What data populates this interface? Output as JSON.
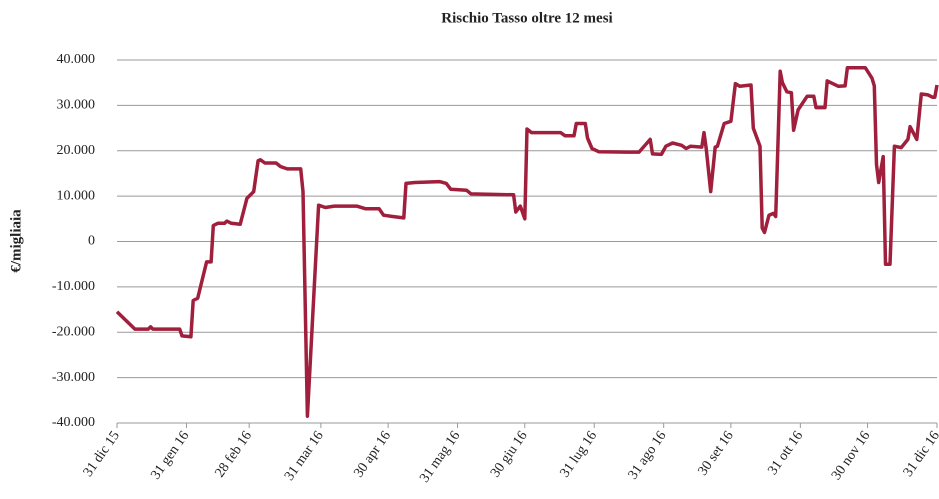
{
  "chart_data": {
    "type": "line",
    "title": "Rischio Tasso oltre 12 mesi",
    "ylabel": "€/migliaia",
    "x": [
      "2015-12-31",
      "2016-01-08",
      "2016-01-14",
      "2016-01-15",
      "2016-01-16",
      "2016-01-28",
      "2016-01-29",
      "2016-02-02",
      "2016-02-03",
      "2016-02-05",
      "2016-02-09",
      "2016-02-11",
      "2016-02-12",
      "2016-02-14",
      "2016-02-17",
      "2016-02-18",
      "2016-02-20",
      "2016-02-24",
      "2016-02-27",
      "2016-03-01",
      "2016-03-03",
      "2016-03-04",
      "2016-03-06",
      "2016-03-11",
      "2016-03-13",
      "2016-03-16",
      "2016-03-22",
      "2016-03-23",
      "2016-03-25",
      "2016-03-30",
      "2016-04-02",
      "2016-04-06",
      "2016-04-16",
      "2016-04-20",
      "2016-04-26",
      "2016-04-28",
      "2016-05-02",
      "2016-05-07",
      "2016-05-08",
      "2016-05-12",
      "2016-05-23",
      "2016-05-26",
      "2016-05-28",
      "2016-06-04",
      "2016-06-06",
      "2016-06-25",
      "2016-06-26",
      "2016-06-28",
      "2016-06-30",
      "2016-07-01",
      "2016-07-03",
      "2016-07-16",
      "2016-07-18",
      "2016-07-22",
      "2016-07-23",
      "2016-07-27",
      "2016-07-28",
      "2016-07-30",
      "2016-08-02",
      "2016-08-15",
      "2016-08-20",
      "2016-08-25",
      "2016-08-26",
      "2016-08-30",
      "2016-09-01",
      "2016-09-04",
      "2016-09-08",
      "2016-09-10",
      "2016-09-12",
      "2016-09-17",
      "2016-09-18",
      "2016-09-19",
      "2016-09-21",
      "2016-09-23",
      "2016-09-24",
      "2016-09-27",
      "2016-09-30",
      "2016-10-02",
      "2016-10-04",
      "2016-10-09",
      "2016-10-10",
      "2016-10-13",
      "2016-10-14",
      "2016-10-15",
      "2016-10-17",
      "2016-10-19",
      "2016-10-20",
      "2016-10-22",
      "2016-10-23",
      "2016-10-25",
      "2016-10-27",
      "2016-10-28",
      "2016-10-30",
      "2016-11-03",
      "2016-11-06",
      "2016-11-07",
      "2016-11-11",
      "2016-11-12",
      "2016-11-17",
      "2016-11-20",
      "2016-11-21",
      "2016-11-29",
      "2016-12-02",
      "2016-12-03",
      "2016-12-04",
      "2016-12-05",
      "2016-12-07",
      "2016-12-08",
      "2016-12-10",
      "2016-12-12",
      "2016-12-15",
      "2016-12-18",
      "2016-12-19",
      "2016-12-22",
      "2016-12-24",
      "2016-12-27",
      "2016-12-29",
      "2016-12-30",
      "2016-12-31"
    ],
    "series": [
      {
        "color": "#a01f3c",
        "values": [
          -15500,
          -19300,
          -19300,
          -18800,
          -19300,
          -19300,
          -20800,
          -21000,
          -13000,
          -12500,
          -4500,
          -4500,
          3500,
          4000,
          4000,
          4500,
          4000,
          3800,
          9500,
          11000,
          17800,
          18000,
          17300,
          17300,
          16500,
          16000,
          16000,
          11000,
          -38500,
          8000,
          7500,
          7800,
          7800,
          7200,
          7200,
          5800,
          5500,
          5200,
          12800,
          13000,
          13200,
          12800,
          11500,
          11300,
          10500,
          10300,
          6500,
          7800,
          5000,
          24800,
          24000,
          24000,
          23300,
          23300,
          26000,
          26000,
          22800,
          20500,
          19800,
          19700,
          19700,
          22500,
          19300,
          19200,
          21000,
          21700,
          21200,
          20500,
          21000,
          20800,
          24000,
          20500,
          11000,
          20800,
          21000,
          26000,
          26500,
          34800,
          34200,
          34500,
          25000,
          21000,
          3000,
          2000,
          5800,
          6200,
          5500,
          37500,
          35000,
          33000,
          32800,
          24500,
          29000,
          32000,
          32000,
          29500,
          29500,
          35400,
          34200,
          34300,
          38300,
          38300,
          36000,
          34300,
          17000,
          13000,
          18700,
          -5000,
          -5000,
          21000,
          20700,
          22500,
          25300,
          22500,
          32500,
          32300,
          31800,
          31800,
          34500
        ]
      }
    ],
    "xlim": [
      "2015-12-31",
      "2016-12-31"
    ],
    "xticks": [
      {
        "value": "2015-12-31",
        "label": "31 dic 15"
      },
      {
        "value": "2016-01-31",
        "label": "31 gen 16"
      },
      {
        "value": "2016-02-28",
        "label": "28 feb 16"
      },
      {
        "value": "2016-03-31",
        "label": "31 mar 16"
      },
      {
        "value": "2016-04-30",
        "label": "30 apr 16"
      },
      {
        "value": "2016-05-31",
        "label": "31 mag 16"
      },
      {
        "value": "2016-06-30",
        "label": "30 giu 16"
      },
      {
        "value": "2016-07-31",
        "label": "31 lug 16"
      },
      {
        "value": "2016-08-31",
        "label": "31 ago 16"
      },
      {
        "value": "2016-09-30",
        "label": "30 set 16"
      },
      {
        "value": "2016-10-31",
        "label": "31 ott 16"
      },
      {
        "value": "2016-11-30",
        "label": "30 nov 16"
      },
      {
        "value": "2016-12-31",
        "label": "31 dic 16"
      }
    ],
    "ylim": [
      -40000,
      40000
    ],
    "yticks": [
      {
        "value": -40000,
        "label": "-40.000"
      },
      {
        "value": -30000,
        "label": "-30.000"
      },
      {
        "value": -20000,
        "label": "-20.000"
      },
      {
        "value": -10000,
        "label": "-10.000"
      },
      0,
      {
        "value": 10000,
        "label": "10.000"
      },
      {
        "value": 20000,
        "label": "20.000"
      },
      {
        "value": 30000,
        "label": "30.000"
      },
      {
        "value": 40000,
        "label": "40.000"
      }
    ],
    "grid": true
  }
}
